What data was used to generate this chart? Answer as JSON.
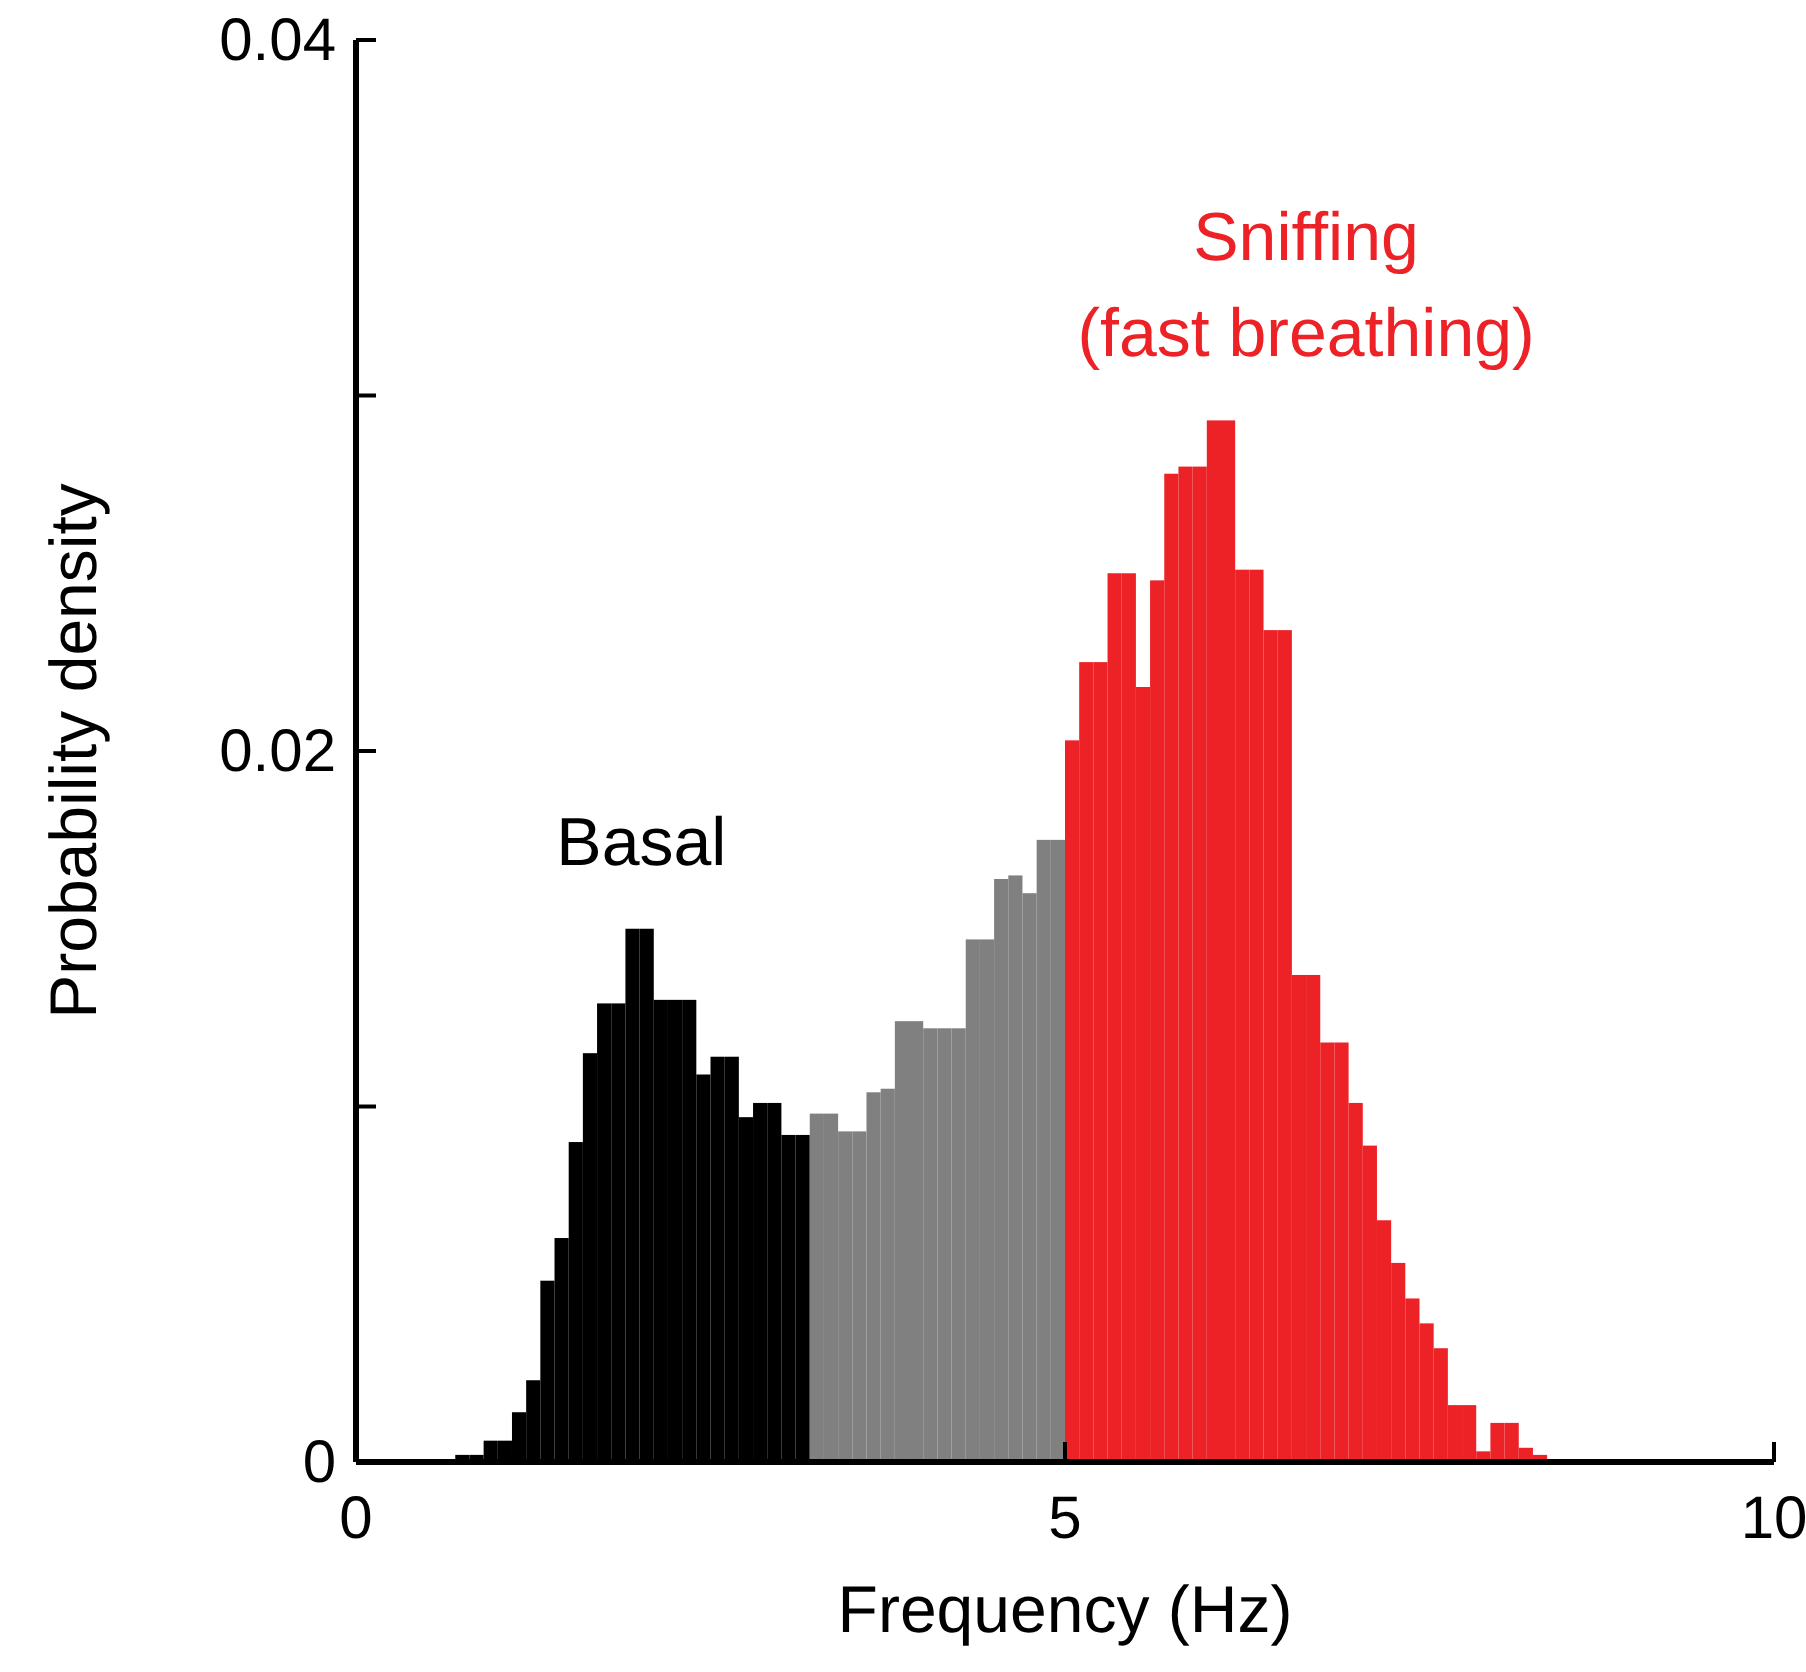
{
  "chart_data": {
    "type": "histogram",
    "xlabel": "Frequency (Hz)",
    "ylabel": "Probability density",
    "xlim": [
      0,
      10
    ],
    "ylim": [
      0,
      0.04
    ],
    "xticks": [
      0,
      5,
      10
    ],
    "yticks": [
      0,
      {
        "value": 0.01,
        "label": null
      },
      0.02,
      {
        "value": 0.03,
        "label": null
      },
      0.04
    ],
    "bins": [
      0.6,
      0.7,
      0.8,
      0.9,
      1.0,
      1.1,
      1.2,
      1.3,
      1.4,
      1.5,
      1.6,
      1.7,
      1.8,
      1.9,
      2.0,
      2.1,
      2.2,
      2.3,
      2.4,
      2.5,
      2.6,
      2.7,
      2.8,
      2.9,
      3.0,
      3.1,
      3.2,
      3.3,
      3.4,
      3.5,
      3.6,
      3.7,
      3.8,
      3.9,
      4.0,
      4.1,
      4.2,
      4.3,
      4.4,
      4.5,
      4.6,
      4.7,
      4.8,
      4.9,
      5.0,
      5.1,
      5.2,
      5.3,
      5.4,
      5.5,
      5.6,
      5.7,
      5.8,
      5.9,
      6.0,
      6.1,
      6.2,
      6.3,
      6.4,
      6.5,
      6.6,
      6.7,
      6.8,
      6.9,
      7.0,
      7.1,
      7.2,
      7.3,
      7.4,
      7.5,
      7.6,
      7.7,
      7.8,
      7.9,
      8.0,
      8.1,
      8.2,
      8.3,
      8.4
    ],
    "values": [
      null,
      0.0002,
      0.0002,
      0.0006,
      0.0006,
      0.0014,
      0.0023,
      0.0051,
      0.0063,
      0.009,
      0.0115,
      0.0129,
      0.0129,
      0.015,
      0.015,
      0.013,
      0.013,
      0.013,
      0.0109,
      0.0114,
      0.0114,
      0.0097,
      0.0101,
      0.0101,
      0.0092,
      0.0092,
      0.0098,
      0.0098,
      0.0093,
      0.0093,
      0.0104,
      0.0105,
      0.0124,
      0.0124,
      0.0122,
      0.0122,
      0.0122,
      0.0147,
      0.0147,
      0.0164,
      0.0165,
      0.016,
      0.0175,
      0.0175,
      0.0203,
      0.0225,
      0.0225,
      0.025,
      0.025,
      0.0218,
      0.0248,
      0.0278,
      0.028,
      0.028,
      0.0293,
      0.0293,
      0.0251,
      0.0251,
      0.0234,
      0.0234,
      0.0137,
      0.0137,
      0.0118,
      0.0118,
      0.0101,
      0.0089,
      0.0068,
      0.0056,
      0.0046,
      0.0039,
      0.0032,
      0.0016,
      0.0016,
      0.0003,
      0.0011,
      0.0011,
      0.0004,
      0.0002
    ],
    "colors": [
      "#000000",
      "#000000",
      "#000000",
      "#000000",
      "#000000",
      "#000000",
      "#000000",
      "#000000",
      "#000000",
      "#000000",
      "#000000",
      "#000000",
      "#000000",
      "#000000",
      "#000000",
      "#000000",
      "#000000",
      "#000000",
      "#000000",
      "#000000",
      "#000000",
      "#000000",
      "#000000",
      "#000000",
      "#000000",
      "#000000",
      "#808080",
      "#808080",
      "#808080",
      "#808080",
      "#808080",
      "#808080",
      "#808080",
      "#808080",
      "#808080",
      "#808080",
      "#808080",
      "#808080",
      "#808080",
      "#808080",
      "#808080",
      "#808080",
      "#808080",
      "#808080",
      "#ec2227",
      "#ec2227",
      "#ec2227",
      "#ec2227",
      "#ec2227",
      "#ec2227",
      "#ec2227",
      "#ec2227",
      "#ec2227",
      "#ec2227",
      "#ec2227",
      "#ec2227",
      "#ec2227",
      "#ec2227",
      "#ec2227",
      "#ec2227",
      "#ec2227",
      "#ec2227",
      "#ec2227",
      "#ec2227",
      "#ec2227",
      "#ec2227",
      "#ec2227",
      "#ec2227",
      "#ec2227",
      "#ec2227",
      "#ec2227",
      "#ec2227",
      "#ec2227",
      "#ec2227",
      "#ec2227",
      "#ec2227",
      "#ec2227",
      "#ec2227"
    ],
    "grid": false,
    "annotations": [
      "Basal",
      "Sniffing\n(fast breathing)"
    ]
  }
}
